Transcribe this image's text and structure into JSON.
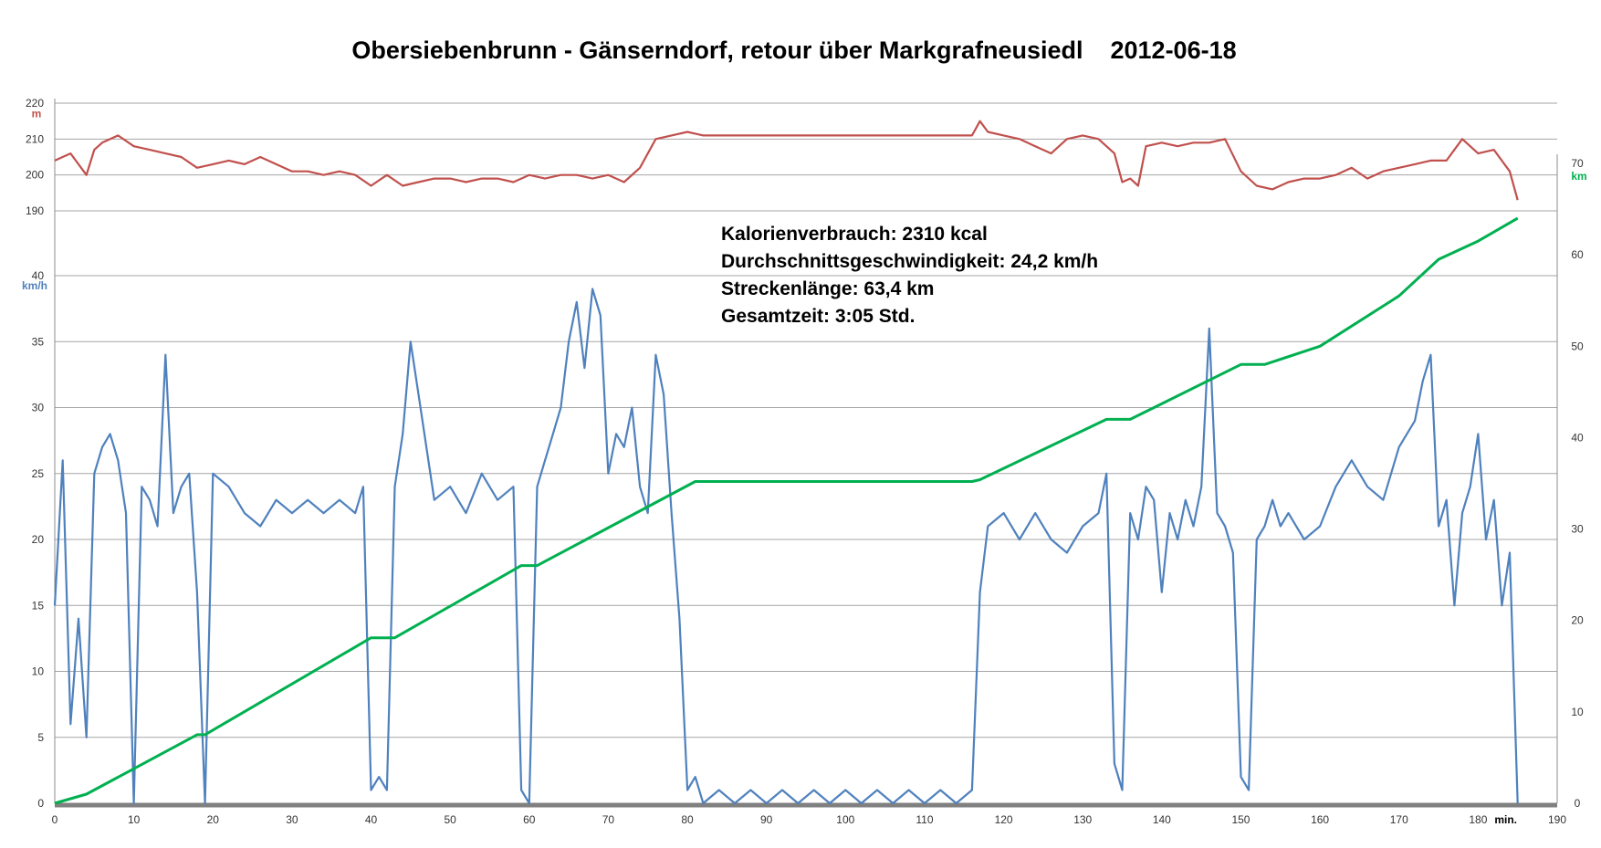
{
  "chart_data": {
    "type": "line",
    "title": "Obersiebenbrunn - Gänserndorf, retour über Markgrafneusiedl    2012-06-18",
    "x_axis": {
      "unit_label": "min.",
      "range": [
        0,
        190
      ],
      "ticks": [
        0,
        10,
        20,
        30,
        40,
        50,
        60,
        70,
        80,
        90,
        100,
        110,
        120,
        130,
        140,
        150,
        160,
        170,
        180,
        190
      ]
    },
    "elevation_axis": {
      "unit_label": "m",
      "range": [
        190,
        220
      ],
      "ticks": [
        190,
        200,
        210,
        220
      ]
    },
    "speed_axis": {
      "unit_label": "km/h",
      "range": [
        0,
        40
      ],
      "ticks": [
        0,
        5,
        10,
        15,
        20,
        25,
        30,
        35,
        40
      ]
    },
    "distance_axis": {
      "unit_label": "km",
      "range": [
        0,
        70
      ],
      "ticks": [
        0,
        10,
        20,
        30,
        40,
        50,
        60,
        70
      ]
    },
    "annotations": [
      "Kalorienverbrauch: 2310 kcal",
      "Durchschnittsgeschwindigkeit: 24,2 km/h",
      "Streckenlänge: 63,4 km",
      "Gesamtzeit: 3:05 Std."
    ],
    "series": [
      {
        "key": "elevation",
        "color": "#c0504d",
        "x": [
          0,
          2,
          4,
          5,
          6,
          8,
          10,
          12,
          14,
          16,
          18,
          20,
          22,
          24,
          26,
          28,
          30,
          32,
          34,
          36,
          38,
          40,
          42,
          44,
          46,
          48,
          50,
          52,
          54,
          56,
          58,
          60,
          62,
          64,
          66,
          68,
          70,
          72,
          74,
          76,
          78,
          80,
          82,
          90,
          100,
          110,
          116,
          117,
          118,
          120,
          122,
          124,
          126,
          128,
          130,
          132,
          134,
          135,
          136,
          137,
          138,
          140,
          142,
          144,
          146,
          148,
          150,
          152,
          154,
          156,
          158,
          160,
          162,
          164,
          166,
          168,
          170,
          172,
          174,
          176,
          178,
          180,
          182,
          184,
          185
        ],
        "y": [
          204,
          206,
          200,
          207,
          209,
          211,
          208,
          207,
          206,
          205,
          202,
          203,
          204,
          203,
          205,
          203,
          201,
          201,
          200,
          201,
          200,
          197,
          200,
          197,
          198,
          199,
          199,
          198,
          199,
          199,
          198,
          200,
          199,
          200,
          200,
          199,
          200,
          198,
          202,
          210,
          211,
          212,
          211,
          211,
          211,
          211,
          211,
          215,
          212,
          211,
          210,
          208,
          206,
          210,
          211,
          210,
          206,
          198,
          199,
          197,
          208,
          209,
          208,
          209,
          209,
          210,
          201,
          197,
          196,
          198,
          199,
          199,
          200,
          202,
          199,
          201,
          202,
          203,
          204,
          204,
          210,
          206,
          207,
          201,
          193
        ]
      },
      {
        "key": "speed",
        "color": "#4f81bd",
        "x": [
          0,
          1,
          2,
          3,
          4,
          5,
          6,
          7,
          8,
          9,
          10,
          11,
          12,
          13,
          14,
          15,
          16,
          17,
          18,
          19,
          20,
          22,
          24,
          26,
          28,
          30,
          32,
          34,
          36,
          38,
          39,
          40,
          41,
          42,
          43,
          44,
          45,
          46,
          48,
          50,
          52,
          54,
          56,
          58,
          59,
          60,
          61,
          62,
          63,
          64,
          65,
          66,
          67,
          68,
          69,
          70,
          71,
          72,
          73,
          74,
          75,
          76,
          77,
          78,
          79,
          80,
          81,
          82,
          84,
          86,
          88,
          90,
          92,
          94,
          96,
          98,
          100,
          102,
          104,
          106,
          108,
          110,
          112,
          114,
          116,
          117,
          118,
          120,
          122,
          124,
          126,
          128,
          130,
          132,
          133,
          134,
          135,
          136,
          137,
          138,
          139,
          140,
          141,
          142,
          143,
          144,
          145,
          146,
          147,
          148,
          149,
          150,
          151,
          152,
          153,
          154,
          155,
          156,
          158,
          160,
          162,
          164,
          166,
          168,
          170,
          172,
          173,
          174,
          175,
          176,
          177,
          178,
          179,
          180,
          181,
          182,
          183,
          184,
          185
        ],
        "y": [
          15,
          26,
          6,
          14,
          5,
          25,
          27,
          28,
          26,
          22,
          0,
          24,
          23,
          21,
          34,
          22,
          24,
          25,
          16,
          0,
          25,
          24,
          22,
          21,
          23,
          22,
          23,
          22,
          23,
          22,
          24,
          1,
          2,
          1,
          24,
          28,
          35,
          31,
          23,
          24,
          22,
          25,
          23,
          24,
          1,
          0,
          24,
          26,
          28,
          30,
          35,
          38,
          33,
          39,
          37,
          25,
          28,
          27,
          30,
          24,
          22,
          34,
          31,
          22,
          14,
          1,
          2,
          0,
          1,
          0,
          1,
          0,
          1,
          0,
          1,
          0,
          1,
          0,
          1,
          0,
          1,
          0,
          1,
          0,
          1,
          16,
          21,
          22,
          20,
          22,
          20,
          19,
          21,
          22,
          25,
          3,
          1,
          22,
          20,
          24,
          23,
          16,
          22,
          20,
          23,
          21,
          24,
          36,
          22,
          21,
          19,
          2,
          1,
          20,
          21,
          23,
          21,
          22,
          20,
          21,
          24,
          26,
          24,
          23,
          27,
          29,
          32,
          34,
          21,
          23,
          15,
          22,
          24,
          28,
          20,
          23,
          15,
          19,
          0
        ]
      },
      {
        "key": "distance",
        "color": "#00b050",
        "x": [
          0,
          4,
          18,
          19,
          40,
          43,
          59,
          61,
          81,
          82,
          116,
          117,
          133,
          136,
          150,
          153,
          160,
          170,
          175,
          180,
          185
        ],
        "y": [
          0,
          1,
          7.5,
          7.5,
          18.1,
          18.1,
          26,
          26,
          35.2,
          35.2,
          35.2,
          35.4,
          42,
          42,
          48,
          48,
          50,
          55.5,
          59.5,
          61.5,
          64
        ]
      }
    ]
  }
}
